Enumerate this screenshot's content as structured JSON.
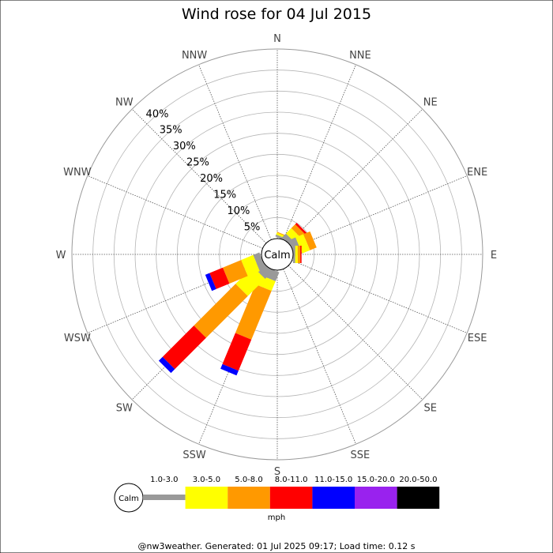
{
  "chart_data": {
    "type": "wind-rose",
    "title": "Wind rose for 04 Jul 2015",
    "directions": [
      "N",
      "NNE",
      "NE",
      "ENE",
      "E",
      "ESE",
      "SE",
      "SSE",
      "S",
      "SSW",
      "SW",
      "WSW",
      "W",
      "WNW",
      "NW",
      "NNW"
    ],
    "radial_ticks": [
      "5%",
      "10%",
      "15%",
      "20%",
      "25%",
      "30%",
      "35%",
      "40%"
    ],
    "radial_values": [
      5,
      10,
      15,
      20,
      25,
      30,
      35,
      40
    ],
    "rmax": 45,
    "calm_label": "Calm",
    "bins": [
      {
        "label": "1.0-3.0",
        "color": "#999999"
      },
      {
        "label": "3.0-5.0",
        "color": "#ffff00"
      },
      {
        "label": "5.0-8.0",
        "color": "#ff9900"
      },
      {
        "label": "8.0-11.0",
        "color": "#ff0000"
      },
      {
        "label": "11.0-15.0",
        "color": "#0000ff"
      },
      {
        "label": "15.0-20.0",
        "color": "#9922ee"
      },
      {
        "label": "20.0-50.0",
        "color": "#000000"
      }
    ],
    "series": [
      {
        "direction": "N",
        "values": [
          0,
          0,
          0,
          0,
          0,
          0,
          0
        ]
      },
      {
        "direction": "NNE",
        "values": [
          0.5,
          0.5,
          0.2,
          0,
          0,
          0,
          0
        ]
      },
      {
        "direction": "NE",
        "values": [
          1.2,
          1.8,
          1.3,
          0.5,
          0,
          0,
          0
        ]
      },
      {
        "direction": "ENE",
        "values": [
          1.8,
          2.0,
          1.7,
          0,
          0,
          0,
          0
        ]
      },
      {
        "direction": "E",
        "values": [
          0.5,
          0.6,
          0.6,
          0.3,
          0,
          0,
          0
        ]
      },
      {
        "direction": "ESE",
        "values": [
          0,
          0,
          0,
          0,
          0,
          0,
          0
        ]
      },
      {
        "direction": "SE",
        "values": [
          0,
          0,
          0,
          0,
          0,
          0,
          0
        ]
      },
      {
        "direction": "SSE",
        "values": [
          0,
          0,
          0,
          0,
          0,
          0,
          0
        ]
      },
      {
        "direction": "S",
        "values": [
          0,
          0,
          0,
          0,
          0,
          0,
          0
        ]
      },
      {
        "direction": "SSW",
        "values": [
          2.3,
          2.5,
          12.5,
          8.0,
          1.2,
          0,
          0
        ]
      },
      {
        "direction": "SW",
        "values": [
          2.4,
          5.8,
          14.0,
          10.5,
          1.3,
          0,
          0
        ]
      },
      {
        "direction": "WSW",
        "values": [
          1.6,
          3.1,
          4.7,
          3.4,
          1.1,
          0,
          0
        ]
      },
      {
        "direction": "W",
        "values": [
          0,
          0,
          0,
          0,
          0,
          0,
          0
        ]
      },
      {
        "direction": "WNW",
        "values": [
          0,
          0,
          0,
          0,
          0,
          0,
          0
        ]
      },
      {
        "direction": "NW",
        "values": [
          0,
          0,
          0,
          0,
          0,
          0,
          0
        ]
      },
      {
        "direction": "NNW",
        "values": [
          0,
          0,
          0,
          0,
          0,
          0,
          0
        ]
      }
    ],
    "legend_unit": "mph",
    "legend_placement": "bottom",
    "grid": true
  },
  "footer": "@nw3weather. Generated: 01 Jul 2025 09:17; Load time: 0.12 s"
}
